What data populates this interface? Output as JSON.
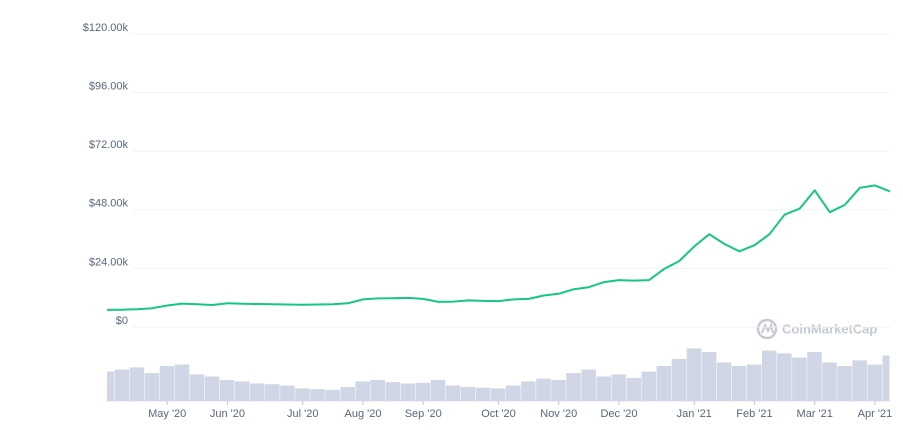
{
  "chart_data": {
    "type": "line",
    "x": [
      null,
      null,
      null,
      null,
      "May '20",
      null,
      null,
      null,
      "Jun '20",
      null,
      null,
      null,
      null,
      "Jul '20",
      null,
      null,
      null,
      "Aug '20",
      null,
      null,
      null,
      "Sep '20",
      null,
      null,
      null,
      null,
      "Oct '20",
      null,
      null,
      null,
      "Nov '20",
      null,
      null,
      null,
      "Dec '20",
      null,
      null,
      null,
      null,
      "Jan '21",
      null,
      null,
      null,
      "Feb '21",
      null,
      null,
      null,
      "Mar '21",
      null,
      null,
      null,
      "Apr '21",
      null
    ],
    "series": [
      {
        "color": "#16c784",
        "values": [
          7000,
          7100,
          7300,
          7700,
          8800,
          9600,
          9300,
          9000,
          9700,
          9500,
          9400,
          9300,
          9200,
          9100,
          9200,
          9300,
          9700,
          11300,
          11700,
          11800,
          11900,
          11500,
          10300,
          10400,
          10900,
          10700,
          10600,
          11300,
          11500,
          12900,
          13600,
          15500,
          16300,
          18400,
          19200,
          19000,
          19200,
          23800,
          27000,
          33000,
          38000,
          34000,
          31000,
          33500,
          38000,
          46000,
          48500,
          56000,
          47000,
          50000,
          57000,
          58000,
          55500
        ]
      },
      {
        "type": "bar",
        "axis": "y2",
        "color": "#d1d6e6",
        "values": [
          42000000000,
          45000000000,
          48000000000,
          40000000000,
          50000000000,
          52000000000,
          38000000000,
          35000000000,
          30000000000,
          28000000000,
          25000000000,
          24000000000,
          22000000000,
          18000000000,
          17000000000,
          16000000000,
          20000000000,
          28000000000,
          30000000000,
          27000000000,
          25000000000,
          26000000000,
          30000000000,
          22000000000,
          20000000000,
          19000000000,
          18000000000,
          22000000000,
          28000000000,
          32000000000,
          30000000000,
          40000000000,
          45000000000,
          35000000000,
          38000000000,
          33000000000,
          42000000000,
          50000000000,
          60000000000,
          75000000000,
          70000000000,
          55000000000,
          50000000000,
          52000000000,
          72000000000,
          68000000000,
          62000000000,
          70000000000,
          55000000000,
          50000000000,
          58000000000,
          52000000000,
          65000000000
        ]
      }
    ],
    "ylim": [
      0,
      120000
    ],
    "yticks": [
      {
        "value": 0,
        "label": "$0"
      },
      {
        "value": 24000,
        "label": "$24.00k"
      },
      {
        "value": 48000,
        "label": "$48.00k"
      },
      {
        "value": 72000,
        "label": "$72.00k"
      },
      {
        "value": 96000,
        "label": "$96.00k"
      },
      {
        "value": 120000,
        "label": "$120.00k"
      }
    ],
    "y2lim": [
      0,
      80000000000
    ],
    "grid": true,
    "watermark": "CoinMarketCap"
  }
}
